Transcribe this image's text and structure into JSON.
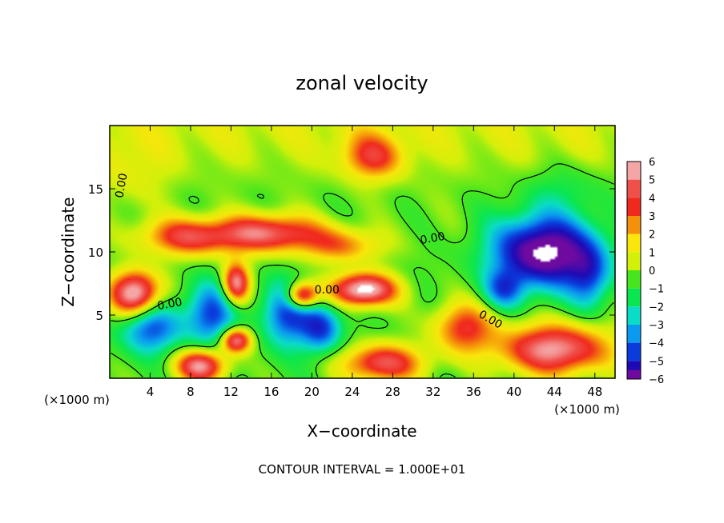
{
  "chart_data": {
    "type": "heatmap",
    "title": "zonal velocity",
    "xlabel": "X−coordinate",
    "ylabel": "Z−coordinate",
    "x_unit": "(×1000 m)",
    "y_unit": "(×1000 m)",
    "footer": "CONTOUR INTERVAL = 1.000E+01",
    "xlim": [
      0,
      50
    ],
    "ylim": [
      0,
      20
    ],
    "x_ticks": [
      4,
      8,
      12,
      16,
      20,
      24,
      28,
      32,
      36,
      40,
      44,
      48
    ],
    "y_ticks": [
      5,
      10,
      15
    ],
    "colorbar": {
      "levels": [
        6,
        5,
        4,
        3,
        2,
        1,
        0,
        -1,
        -2,
        -3,
        -4,
        -5,
        -6
      ],
      "colors": [
        "#f4a6a6",
        "#f0504a",
        "#f0281e",
        "#f5900a",
        "#fae60a",
        "#d2f00a",
        "#46e61e",
        "#0ae650",
        "#0adcc8",
        "#0a9bf0",
        "#0a3cdc",
        "#1e0ab4",
        "#6e0aa0"
      ]
    },
    "contour_label": "0.00",
    "features": [
      {
        "x": 26,
        "y": 17.5,
        "value": 3.5,
        "rx": 3,
        "ry": 1.8
      },
      {
        "x": 8,
        "y": 11.2,
        "value": 4.5,
        "rx": 5,
        "ry": 1.5
      },
      {
        "x": 16,
        "y": 11.5,
        "value": 5,
        "rx": 5,
        "ry": 1.5
      },
      {
        "x": 23,
        "y": 10.5,
        "value": 3,
        "rx": 4,
        "ry": 1.4
      },
      {
        "x": 2.5,
        "y": 6.7,
        "value": 7,
        "rx": 2.4,
        "ry": 1.8
      },
      {
        "x": 12.5,
        "y": 7.5,
        "value": 6,
        "rx": 1.3,
        "ry": 1.6
      },
      {
        "x": 25,
        "y": 7,
        "value": 7,
        "rx": 3.3,
        "ry": 1.3
      },
      {
        "x": 43,
        "y": 10,
        "value": -7,
        "rx": 5,
        "ry": 2.8
      },
      {
        "x": 47.5,
        "y": 8,
        "value": -3,
        "rx": 2,
        "ry": 2.5
      },
      {
        "x": 44,
        "y": 2.3,
        "value": 6,
        "rx": 5.5,
        "ry": 2
      },
      {
        "x": 9,
        "y": 1,
        "value": 6,
        "rx": 2.5,
        "ry": 1.3
      },
      {
        "x": 27,
        "y": 1.2,
        "value": 5,
        "rx": 4,
        "ry": 1.5
      },
      {
        "x": 4,
        "y": 4,
        "value": -4,
        "rx": 3,
        "ry": 2
      },
      {
        "x": 10,
        "y": 5,
        "value": -4,
        "rx": 2.5,
        "ry": 2.5
      },
      {
        "x": 17.5,
        "y": 5,
        "value": -4,
        "rx": 2.5,
        "ry": 2.5
      },
      {
        "x": 21,
        "y": 4,
        "value": -4,
        "rx": 2,
        "ry": 2
      },
      {
        "x": 12.5,
        "y": 3,
        "value": 6,
        "rx": 1.5,
        "ry": 1
      },
      {
        "x": 19,
        "y": 6.5,
        "value": 6,
        "rx": 1.5,
        "ry": 1
      },
      {
        "x": 35,
        "y": 4,
        "value": 4,
        "rx": 3,
        "ry": 2
      },
      {
        "x": 39,
        "y": 7,
        "value": -3,
        "rx": 2,
        "ry": 1.5
      },
      {
        "x": 2,
        "y": 16,
        "value": 1,
        "rx": 4,
        "ry": 3
      },
      {
        "x": 45,
        "y": 15,
        "value": -1,
        "rx": 4,
        "ry": 2
      },
      {
        "x": 32,
        "y": 12,
        "value": 0.2,
        "rx": 4,
        "ry": 3
      }
    ]
  }
}
